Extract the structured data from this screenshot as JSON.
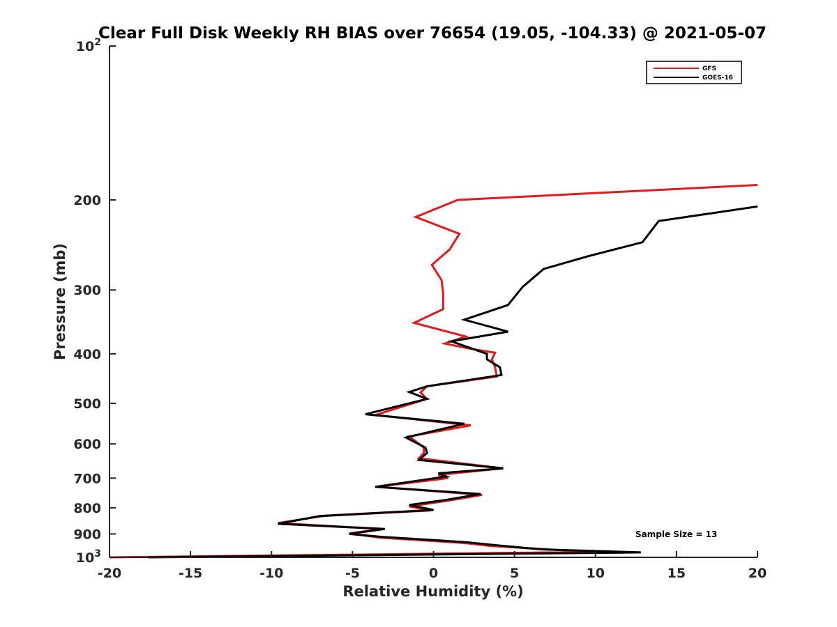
{
  "chart_data": {
    "type": "line",
    "title": "Clear Full Disk Weekly RH BIAS over 76654 (19.05, -104.33) @ 2021-05-07",
    "xlabel": "Relative Humidity (%)",
    "ylabel": "Pressure (mb)",
    "xlim": [
      -20,
      20
    ],
    "ylim": [
      100,
      1000
    ],
    "yscale": "log",
    "y_reversed": true,
    "xticks": [
      -20,
      -15,
      -10,
      -5,
      0,
      5,
      10,
      15,
      20
    ],
    "xtick_labels": [
      "-20",
      "-15",
      "-10",
      "-5",
      "0",
      "5",
      "10",
      "15",
      "20"
    ],
    "yticks": [
      {
        "value": 100,
        "label": "10",
        "sup": "2"
      },
      {
        "value": 200,
        "label": "200",
        "sup": ""
      },
      {
        "value": 300,
        "label": "300",
        "sup": ""
      },
      {
        "value": 400,
        "label": "400",
        "sup": ""
      },
      {
        "value": 500,
        "label": "500",
        "sup": ""
      },
      {
        "value": 600,
        "label": "600",
        "sup": ""
      },
      {
        "value": 700,
        "label": "700",
        "sup": ""
      },
      {
        "value": 800,
        "label": "800",
        "sup": ""
      },
      {
        "value": 900,
        "label": "900",
        "sup": ""
      },
      {
        "value": 1000,
        "label": "10",
        "sup": "3"
      }
    ],
    "legend_position": "top-right",
    "annotation": "Sample Size = 13",
    "series": [
      {
        "name": "GFS",
        "color": "#e41a1c",
        "points": [
          [
            20.0,
            187
          ],
          [
            1.5,
            200
          ],
          [
            -1.1,
            216
          ],
          [
            1.6,
            233
          ],
          [
            1.0,
            250
          ],
          [
            -0.1,
            268
          ],
          [
            0.5,
            287
          ],
          [
            0.6,
            305
          ],
          [
            0.6,
            327
          ],
          [
            -1.2,
            348
          ],
          [
            2.0,
            370
          ],
          [
            0.7,
            382
          ],
          [
            2.1,
            390
          ],
          [
            3.8,
            398
          ],
          [
            3.6,
            410
          ],
          [
            3.8,
            425
          ],
          [
            3.9,
            443
          ],
          [
            -0.4,
            463
          ],
          [
            -0.8,
            476
          ],
          [
            -0.4,
            490
          ],
          [
            -3.6,
            527
          ],
          [
            2.3,
            552
          ],
          [
            -1.5,
            580
          ],
          [
            -0.6,
            610
          ],
          [
            -0.6,
            625
          ],
          [
            -0.9,
            640
          ],
          [
            4.3,
            670
          ],
          [
            0.3,
            690
          ],
          [
            0.9,
            700
          ],
          [
            -3.5,
            728
          ],
          [
            3.0,
            755
          ],
          [
            0.9,
            775
          ],
          [
            -1.5,
            795
          ],
          [
            -0.2,
            810
          ],
          [
            -6.8,
            830
          ],
          [
            -9.6,
            857
          ],
          [
            -3.2,
            880
          ],
          [
            -5.2,
            898
          ],
          [
            -3.3,
            915
          ],
          [
            2.0,
            938
          ],
          [
            3.5,
            950
          ],
          [
            9.7,
            976
          ],
          [
            -20.0,
            1000
          ]
        ]
      },
      {
        "name": "GOES-16",
        "color": "#000000",
        "points": [
          [
            20.0,
            206
          ],
          [
            13.9,
            220
          ],
          [
            12.9,
            242
          ],
          [
            9.5,
            258
          ],
          [
            6.8,
            273
          ],
          [
            5.5,
            296
          ],
          [
            4.6,
            321
          ],
          [
            1.9,
            343
          ],
          [
            4.6,
            362
          ],
          [
            1.1,
            378
          ],
          [
            2.1,
            388
          ],
          [
            3.3,
            400
          ],
          [
            3.3,
            410
          ],
          [
            4.1,
            425
          ],
          [
            4.2,
            440
          ],
          [
            -0.4,
            463
          ],
          [
            -1.5,
            475
          ],
          [
            -0.4,
            490
          ],
          [
            -4.2,
            525
          ],
          [
            1.9,
            548
          ],
          [
            -1.7,
            583
          ],
          [
            -0.5,
            610
          ],
          [
            -0.4,
            625
          ],
          [
            -0.9,
            645
          ],
          [
            4.3,
            670
          ],
          [
            0.3,
            685
          ],
          [
            0.8,
            695
          ],
          [
            -3.6,
            728
          ],
          [
            2.9,
            752
          ],
          [
            0.8,
            772
          ],
          [
            -1.5,
            790
          ],
          [
            0.0,
            808
          ],
          [
            -7.0,
            830
          ],
          [
            -9.6,
            860
          ],
          [
            -3.0,
            880
          ],
          [
            -5.2,
            900
          ],
          [
            -3.2,
            912
          ],
          [
            2.0,
            934
          ],
          [
            3.7,
            946
          ],
          [
            6.7,
            965
          ],
          [
            12.8,
            978
          ],
          [
            -17.6,
            1000
          ]
        ]
      }
    ]
  }
}
